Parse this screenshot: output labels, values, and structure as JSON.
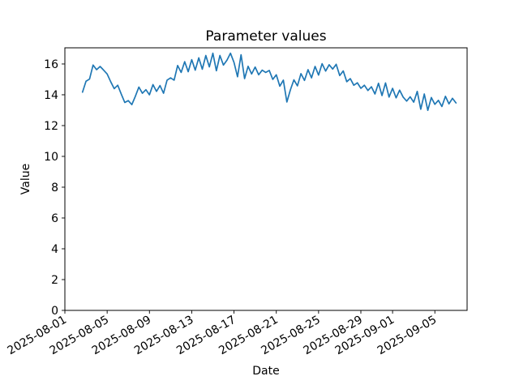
{
  "chart_data": {
    "type": "line",
    "title": "Parameter values",
    "xlabel": "Date",
    "ylabel": "Value",
    "series_name": "Parameter values",
    "series_start": "2025-08-02T16:00:00",
    "interval_hours": 8,
    "values": [
      14.17,
      14.88,
      15.02,
      15.93,
      15.63,
      15.84,
      15.6,
      15.35,
      14.85,
      14.4,
      14.62,
      14.05,
      13.5,
      13.62,
      13.36,
      13.9,
      14.5,
      14.1,
      14.33,
      14.0,
      14.66,
      14.22,
      14.6,
      14.1,
      14.95,
      15.1,
      14.95,
      15.9,
      15.45,
      16.15,
      15.5,
      16.28,
      15.6,
      16.4,
      15.66,
      16.55,
      15.81,
      16.7,
      15.56,
      16.55,
      15.93,
      16.25,
      16.7,
      16.1,
      15.17,
      16.6,
      15.05,
      15.85,
      15.35,
      15.8,
      15.3,
      15.6,
      15.45,
      15.58,
      15.0,
      15.3,
      14.56,
      14.95,
      13.53,
      14.32,
      14.97,
      14.58,
      15.37,
      14.93,
      15.63,
      15.1,
      15.84,
      15.28,
      16.02,
      15.54,
      15.95,
      15.67,
      15.98,
      15.25,
      15.55,
      14.85,
      15.05,
      14.62,
      14.78,
      14.42,
      14.62,
      14.28,
      14.52,
      14.05,
      14.75,
      13.95,
      14.77,
      13.85,
      14.42,
      13.8,
      14.3,
      13.85,
      13.59,
      13.87,
      13.52,
      14.22,
      13.06,
      14.05,
      12.99,
      13.82,
      13.38,
      13.64,
      13.24,
      13.9,
      13.41,
      13.77,
      13.47
    ],
    "x_axis_epoch": "2025-08-01T00:00:00",
    "x_tick_labels": [
      "2025-08-01",
      "2025-08-05",
      "2025-08-09",
      "2025-08-13",
      "2025-08-17",
      "2025-08-21",
      "2025-08-25",
      "2025-08-29",
      "2025-09-01",
      "2025-09-05"
    ],
    "y_tick_labels": [
      "0",
      "2",
      "4",
      "6",
      "8",
      "10",
      "12",
      "14",
      "16"
    ],
    "y_ticks": [
      0,
      2,
      4,
      6,
      8,
      10,
      12,
      14,
      16
    ],
    "ylim": [
      0,
      17.05
    ],
    "xlim_days": [
      0,
      38.05
    ],
    "grid": false,
    "legend": null,
    "line_color": "#1f77b4",
    "axis_color": "#000000",
    "background_color": "#ffffff"
  }
}
